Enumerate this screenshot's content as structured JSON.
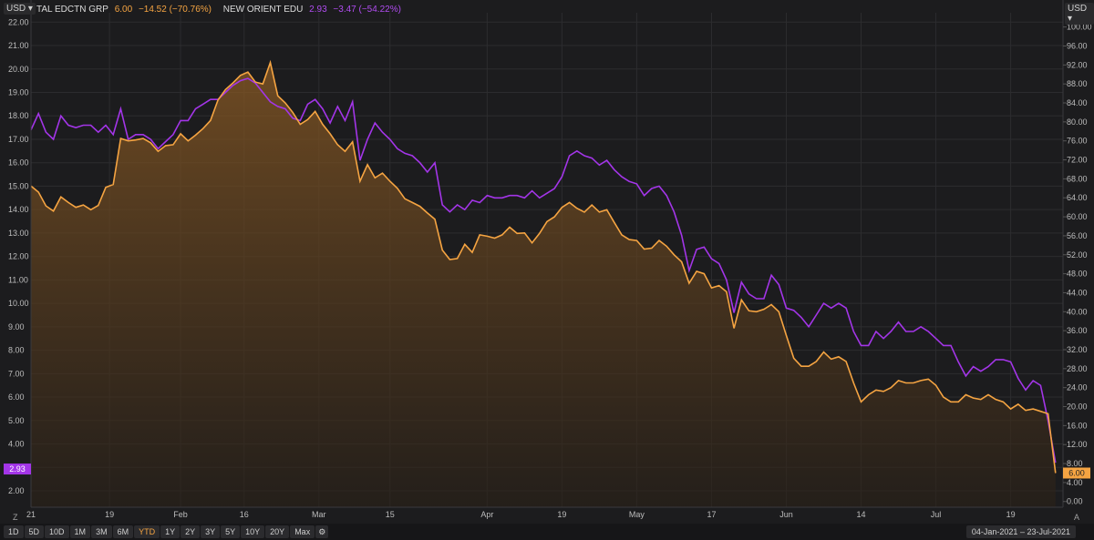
{
  "currency_left": "USD",
  "currency_right": "USD",
  "legend": [
    {
      "name": "TAL EDCTN GRP",
      "price": "6.00",
      "change": "−14.52 (−70.76%)",
      "color": "#f5a442"
    },
    {
      "name": "NEW ORIENT EDU",
      "price": "2.93",
      "change": "−3.47 (−54.22%)",
      "color": "#a335e8"
    }
  ],
  "range_buttons": [
    "1D",
    "5D",
    "10D",
    "1M",
    "3M",
    "6M",
    "YTD",
    "1Y",
    "2Y",
    "3Y",
    "5Y",
    "10Y",
    "20Y",
    "Max"
  ],
  "active_range": "YTD",
  "date_range": {
    "start": "04-Jan-2021",
    "sep": "–",
    "end": "23-Jul-2021"
  },
  "corner_left": "Z",
  "corner_right": "A",
  "colors": {
    "tal": "#f5a442",
    "edu": "#a335e8",
    "bg": "#1c1c1e",
    "grid": "#2c2c2f"
  },
  "chart_data": {
    "type": "line",
    "x_tick_labels": [
      "21",
      "19",
      "Feb",
      "16",
      "Mar",
      "15",
      "Apr",
      "19",
      "May",
      "17",
      "Jun",
      "14",
      "Jul",
      "19"
    ],
    "left_axis": {
      "ticks": [
        "2.00",
        "3.00",
        "4.00",
        "5.00",
        "6.00",
        "7.00",
        "8.00",
        "9.00",
        "10.00",
        "11.00",
        "12.00",
        "13.00",
        "14.00",
        "15.00",
        "16.00",
        "17.00",
        "18.00",
        "19.00",
        "20.00",
        "21.00",
        "22.00"
      ],
      "min": 1.3,
      "max": 22.4
    },
    "right_axis": {
      "ticks": [
        "0.00",
        "4.00",
        "8.00",
        "12.00",
        "16.00",
        "20.00",
        "24.00",
        "28.00",
        "32.00",
        "36.00",
        "40.00",
        "44.00",
        "48.00",
        "52.00",
        "56.00",
        "60.00",
        "64.00",
        "68.00",
        "72.00",
        "76.00",
        "80.00",
        "84.00",
        "88.00",
        "92.00",
        "96.00",
        "100.00"
      ],
      "min": -1.2,
      "max": 103
    },
    "last_label_left": "2.93",
    "last_label_right": "6.00",
    "series": [
      {
        "name": "NEW ORIENT EDU",
        "axis": "left",
        "color": "#a335e8",
        "points": [
          [
            0,
            17.4
          ],
          [
            2,
            18.1
          ],
          [
            4,
            17.3
          ],
          [
            6,
            17.0
          ],
          [
            8,
            18.0
          ],
          [
            10,
            17.6
          ],
          [
            12,
            17.5
          ],
          [
            14,
            17.6
          ],
          [
            16,
            17.6
          ],
          [
            18,
            17.3
          ],
          [
            20,
            17.6
          ],
          [
            22,
            17.2
          ],
          [
            24,
            18.3
          ],
          [
            26,
            17.0
          ],
          [
            28,
            17.2
          ],
          [
            30,
            17.2
          ],
          [
            32,
            17.0
          ],
          [
            34,
            16.6
          ],
          [
            36,
            16.9
          ],
          [
            38,
            17.2
          ],
          [
            40,
            17.8
          ],
          [
            42,
            17.8
          ],
          [
            44,
            18.3
          ],
          [
            46,
            18.5
          ],
          [
            48,
            18.7
          ],
          [
            50,
            18.7
          ],
          [
            52,
            19.0
          ],
          [
            54,
            19.3
          ],
          [
            56,
            19.5
          ],
          [
            58,
            19.6
          ],
          [
            60,
            19.4
          ],
          [
            62,
            19.0
          ],
          [
            64,
            18.6
          ],
          [
            66,
            18.4
          ],
          [
            68,
            18.3
          ],
          [
            70,
            17.9
          ],
          [
            72,
            17.8
          ],
          [
            74,
            18.5
          ],
          [
            76,
            18.7
          ],
          [
            78,
            18.3
          ],
          [
            80,
            17.7
          ],
          [
            82,
            18.4
          ],
          [
            84,
            17.8
          ],
          [
            86,
            18.6
          ],
          [
            88,
            16.1
          ],
          [
            90,
            17.0
          ],
          [
            92,
            17.7
          ],
          [
            94,
            17.3
          ],
          [
            96,
            17.0
          ],
          [
            98,
            16.6
          ],
          [
            100,
            16.4
          ],
          [
            102,
            16.3
          ],
          [
            104,
            16.0
          ],
          [
            106,
            15.6
          ],
          [
            108,
            16.0
          ],
          [
            110,
            14.2
          ],
          [
            112,
            13.9
          ],
          [
            114,
            14.2
          ],
          [
            116,
            14.0
          ],
          [
            118,
            14.4
          ],
          [
            120,
            14.3
          ],
          [
            122,
            14.6
          ],
          [
            124,
            14.5
          ],
          [
            126,
            14.5
          ],
          [
            128,
            14.6
          ],
          [
            130,
            14.6
          ],
          [
            132,
            14.5
          ],
          [
            134,
            14.8
          ],
          [
            136,
            14.5
          ],
          [
            138,
            14.7
          ],
          [
            140,
            14.9
          ],
          [
            142,
            15.4
          ],
          [
            144,
            16.3
          ],
          [
            146,
            16.5
          ],
          [
            148,
            16.3
          ],
          [
            150,
            16.2
          ],
          [
            152,
            15.9
          ],
          [
            154,
            16.1
          ],
          [
            156,
            15.7
          ],
          [
            158,
            15.4
          ],
          [
            160,
            15.2
          ],
          [
            162,
            15.1
          ],
          [
            164,
            14.6
          ],
          [
            166,
            14.9
          ],
          [
            168,
            15.0
          ],
          [
            170,
            14.6
          ],
          [
            172,
            13.9
          ],
          [
            174,
            12.9
          ],
          [
            176,
            11.4
          ],
          [
            178,
            12.3
          ],
          [
            180,
            12.4
          ],
          [
            182,
            11.9
          ],
          [
            184,
            11.7
          ],
          [
            186,
            11.0
          ],
          [
            188,
            9.6
          ],
          [
            190,
            10.9
          ],
          [
            192,
            10.4
          ],
          [
            194,
            10.2
          ],
          [
            196,
            10.2
          ],
          [
            198,
            11.2
          ],
          [
            200,
            10.8
          ],
          [
            202,
            9.8
          ],
          [
            204,
            9.7
          ],
          [
            206,
            9.4
          ],
          [
            208,
            9.0
          ],
          [
            210,
            9.5
          ],
          [
            212,
            10.0
          ],
          [
            214,
            9.8
          ],
          [
            216,
            10.0
          ],
          [
            218,
            9.8
          ],
          [
            220,
            8.8
          ],
          [
            222,
            8.2
          ],
          [
            224,
            8.2
          ],
          [
            226,
            8.8
          ],
          [
            228,
            8.5
          ],
          [
            230,
            8.8
          ],
          [
            232,
            9.2
          ],
          [
            234,
            8.8
          ],
          [
            236,
            8.8
          ],
          [
            238,
            9.0
          ],
          [
            240,
            8.8
          ],
          [
            242,
            8.5
          ],
          [
            244,
            8.2
          ],
          [
            246,
            8.2
          ],
          [
            248,
            7.5
          ],
          [
            250,
            6.9
          ],
          [
            252,
            7.3
          ],
          [
            254,
            7.1
          ],
          [
            256,
            7.3
          ],
          [
            258,
            7.6
          ],
          [
            260,
            7.6
          ],
          [
            262,
            7.5
          ],
          [
            264,
            6.8
          ],
          [
            266,
            6.3
          ],
          [
            268,
            6.7
          ],
          [
            270,
            6.5
          ],
          [
            272,
            5.0
          ],
          [
            274,
            3.2
          ]
        ]
      },
      {
        "name": "TAL EDCTN GRP",
        "axis": "right",
        "color": "#f5a442",
        "points": [
          [
            0,
            66.5
          ],
          [
            2,
            65.2
          ],
          [
            4,
            62.3
          ],
          [
            6,
            61.2
          ],
          [
            8,
            64.2
          ],
          [
            10,
            63.0
          ],
          [
            12,
            62.0
          ],
          [
            14,
            62.5
          ],
          [
            16,
            61.5
          ],
          [
            18,
            62.4
          ],
          [
            20,
            66.2
          ],
          [
            22,
            66.8
          ],
          [
            24,
            76.5
          ],
          [
            26,
            76.0
          ],
          [
            28,
            76.2
          ],
          [
            30,
            76.5
          ],
          [
            32,
            75.6
          ],
          [
            34,
            73.8
          ],
          [
            36,
            75.0
          ],
          [
            38,
            75.2
          ],
          [
            40,
            77.5
          ],
          [
            42,
            76.0
          ],
          [
            44,
            77.2
          ],
          [
            46,
            78.6
          ],
          [
            48,
            80.3
          ],
          [
            50,
            84.6
          ],
          [
            52,
            86.8
          ],
          [
            54,
            88.2
          ],
          [
            56,
            89.8
          ],
          [
            58,
            90.5
          ],
          [
            60,
            88.4
          ],
          [
            62,
            88.0
          ],
          [
            64,
            92.5
          ],
          [
            66,
            85.5
          ],
          [
            68,
            84.0
          ],
          [
            70,
            82.0
          ],
          [
            72,
            79.5
          ],
          [
            74,
            80.5
          ],
          [
            76,
            82.2
          ],
          [
            78,
            79.5
          ],
          [
            80,
            77.5
          ],
          [
            82,
            75.2
          ],
          [
            84,
            73.8
          ],
          [
            86,
            75.8
          ],
          [
            88,
            67.5
          ],
          [
            90,
            71.0
          ],
          [
            92,
            68.2
          ],
          [
            94,
            69.2
          ],
          [
            96,
            67.5
          ],
          [
            98,
            66.0
          ],
          [
            100,
            63.8
          ],
          [
            102,
            63.0
          ],
          [
            104,
            62.2
          ],
          [
            106,
            60.8
          ],
          [
            108,
            59.5
          ],
          [
            110,
            53.0
          ],
          [
            112,
            51.0
          ],
          [
            114,
            51.2
          ],
          [
            116,
            54.2
          ],
          [
            118,
            52.5
          ],
          [
            120,
            56.2
          ],
          [
            122,
            55.9
          ],
          [
            124,
            55.5
          ],
          [
            126,
            56.2
          ],
          [
            128,
            57.8
          ],
          [
            130,
            56.5
          ],
          [
            132,
            56.6
          ],
          [
            134,
            54.5
          ],
          [
            136,
            56.5
          ],
          [
            138,
            59.0
          ],
          [
            140,
            60.0
          ],
          [
            142,
            62.0
          ],
          [
            144,
            63.0
          ],
          [
            146,
            61.8
          ],
          [
            148,
            61.0
          ],
          [
            150,
            62.5
          ],
          [
            152,
            61.0
          ],
          [
            154,
            61.5
          ],
          [
            156,
            58.8
          ],
          [
            158,
            56.2
          ],
          [
            160,
            55.2
          ],
          [
            162,
            55.0
          ],
          [
            164,
            53.2
          ],
          [
            166,
            53.4
          ],
          [
            168,
            55.0
          ],
          [
            170,
            53.8
          ],
          [
            172,
            52.0
          ],
          [
            174,
            50.5
          ],
          [
            176,
            46.0
          ],
          [
            178,
            48.5
          ],
          [
            180,
            48.0
          ],
          [
            182,
            45.0
          ],
          [
            184,
            45.5
          ],
          [
            186,
            44.2
          ],
          [
            188,
            36.5
          ],
          [
            190,
            42.5
          ],
          [
            192,
            40.2
          ],
          [
            194,
            40.0
          ],
          [
            196,
            40.5
          ],
          [
            198,
            41.5
          ],
          [
            200,
            40.0
          ],
          [
            202,
            35.0
          ],
          [
            204,
            30.2
          ],
          [
            206,
            28.5
          ],
          [
            208,
            28.5
          ],
          [
            210,
            29.5
          ],
          [
            212,
            31.5
          ],
          [
            214,
            30.0
          ],
          [
            216,
            30.5
          ],
          [
            218,
            29.5
          ],
          [
            220,
            25.0
          ],
          [
            222,
            21.0
          ],
          [
            224,
            22.5
          ],
          [
            226,
            23.5
          ],
          [
            228,
            23.2
          ],
          [
            230,
            24.0
          ],
          [
            232,
            25.5
          ],
          [
            234,
            25.0
          ],
          [
            236,
            25.0
          ],
          [
            238,
            25.5
          ],
          [
            240,
            25.8
          ],
          [
            242,
            24.5
          ],
          [
            244,
            22.0
          ],
          [
            246,
            21.0
          ],
          [
            248,
            21.0
          ],
          [
            250,
            22.5
          ],
          [
            252,
            21.8
          ],
          [
            254,
            21.5
          ],
          [
            256,
            22.5
          ],
          [
            258,
            21.5
          ],
          [
            260,
            21.0
          ],
          [
            262,
            19.5
          ],
          [
            264,
            20.5
          ],
          [
            266,
            19.2
          ],
          [
            268,
            19.5
          ],
          [
            270,
            19.0
          ],
          [
            272,
            18.5
          ],
          [
            274,
            6.0
          ]
        ]
      }
    ]
  }
}
